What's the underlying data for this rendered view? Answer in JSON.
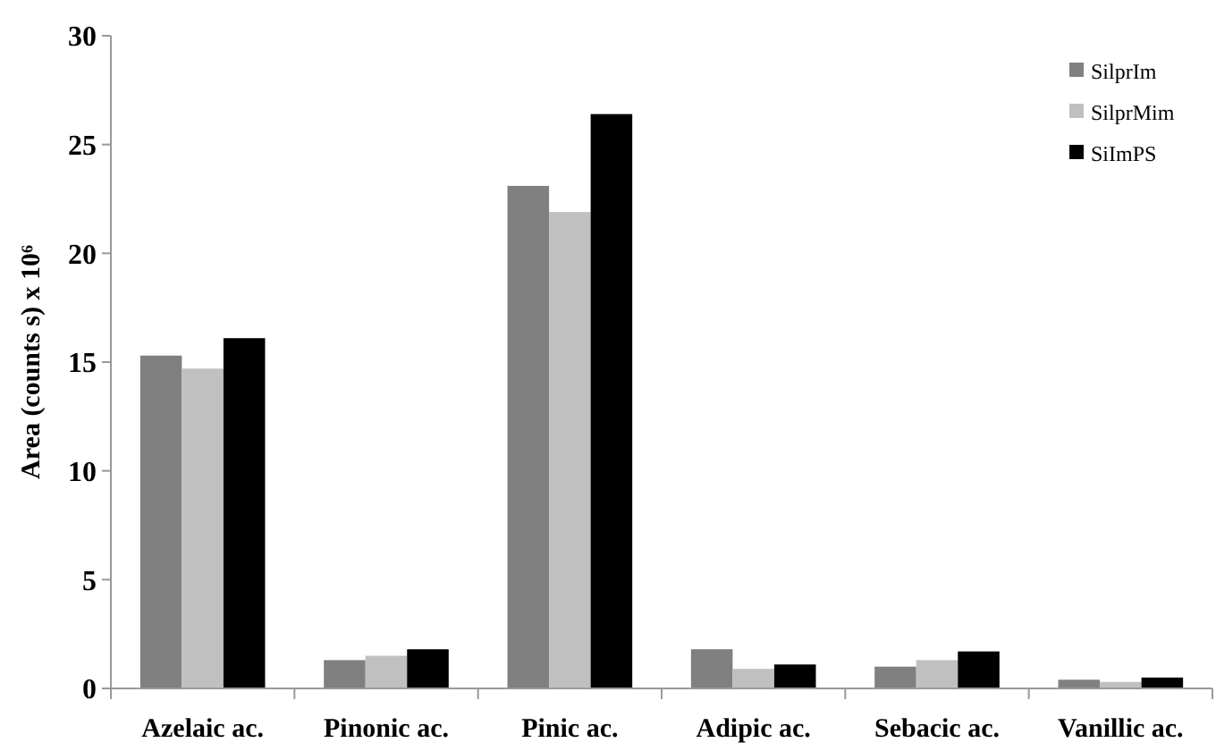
{
  "chart_data": {
    "type": "bar",
    "ylabel": "Area (counts s) x 10⁶",
    "categories": [
      "Azelaic ac.",
      "Pinonic ac.",
      "Pinic ac.",
      "Adipic ac.",
      "Sebacic ac.",
      "Vanillic ac."
    ],
    "series": [
      {
        "name": "SilprIm",
        "color": "#808080",
        "values": [
          15.3,
          1.3,
          23.1,
          1.8,
          1.0,
          0.4
        ]
      },
      {
        "name": "SilprMim",
        "color": "#c0c0c0",
        "values": [
          14.7,
          1.5,
          21.9,
          0.9,
          1.3,
          0.3
        ]
      },
      {
        "name": "SiImPS",
        "color": "#000000",
        "values": [
          16.1,
          1.8,
          26.4,
          1.1,
          1.7,
          0.5
        ]
      }
    ],
    "ylim": [
      0,
      30
    ],
    "yticks": [
      0,
      5,
      10,
      15,
      20,
      25,
      30
    ],
    "grid": false,
    "legend": "top right"
  }
}
